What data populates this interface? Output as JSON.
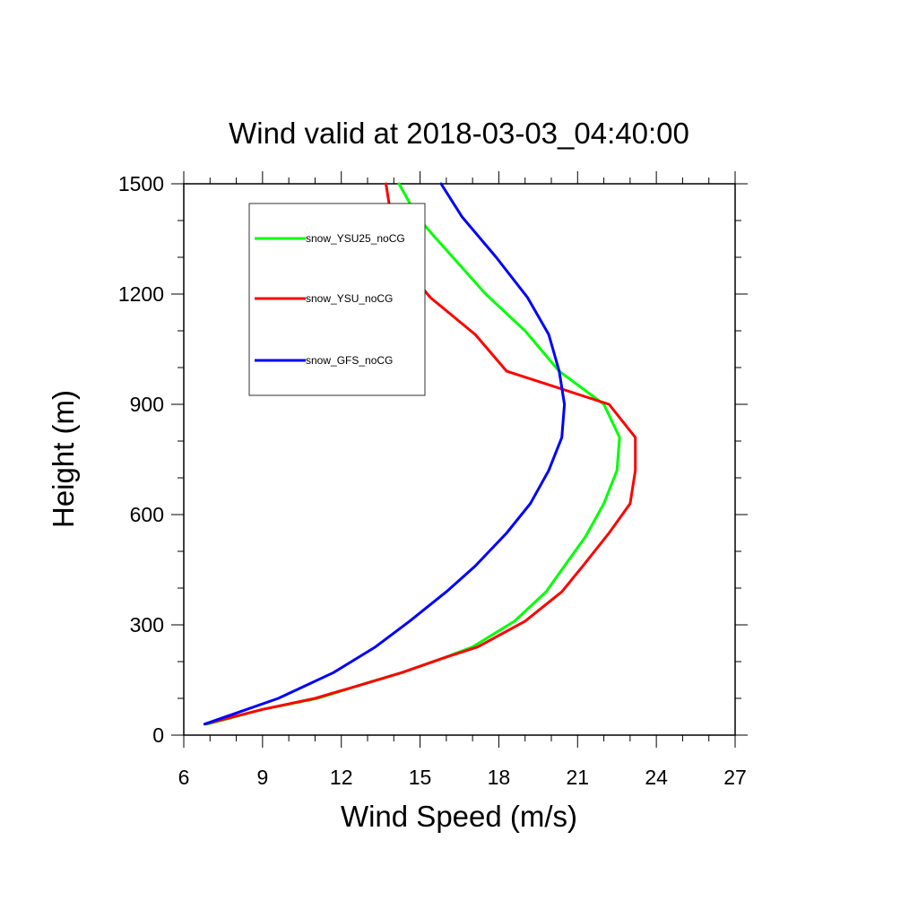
{
  "chart_data": {
    "type": "line",
    "title": "Wind valid at 2018-03-03_04:40:00",
    "xlabel": "Wind Speed (m/s)",
    "ylabel": "Height (m)",
    "xlim": [
      6,
      27
    ],
    "ylim": [
      0,
      1500
    ],
    "xticks": [
      6,
      9,
      12,
      15,
      18,
      21,
      24,
      27
    ],
    "yticks": [
      0,
      300,
      600,
      900,
      1200,
      1500
    ],
    "grid": false,
    "legend_position": "top-left",
    "series": [
      {
        "name": "snow_YSU25_noCG",
        "color": "#00ff00",
        "points": [
          [
            6.9,
            30
          ],
          [
            9.0,
            70
          ],
          [
            11.1,
            100
          ],
          [
            12.9,
            140
          ],
          [
            14.3,
            170
          ],
          [
            15.9,
            210
          ],
          [
            17.0,
            240
          ],
          [
            18.6,
            310
          ],
          [
            19.8,
            390
          ],
          [
            20.5,
            460
          ],
          [
            21.3,
            540
          ],
          [
            22.0,
            630
          ],
          [
            22.5,
            720
          ],
          [
            22.6,
            810
          ],
          [
            22.0,
            900
          ],
          [
            20.3,
            990
          ],
          [
            19.0,
            1100
          ],
          [
            17.5,
            1200
          ],
          [
            16.5,
            1280
          ],
          [
            15.5,
            1360
          ],
          [
            14.9,
            1410
          ],
          [
            14.2,
            1500
          ]
        ]
      },
      {
        "name": "snow_YSU_noCG",
        "color": "#ff0000",
        "points": [
          [
            6.8,
            30
          ],
          [
            9.0,
            70
          ],
          [
            11.0,
            100
          ],
          [
            12.9,
            140
          ],
          [
            14.3,
            170
          ],
          [
            15.9,
            210
          ],
          [
            17.2,
            240
          ],
          [
            19.0,
            310
          ],
          [
            20.4,
            390
          ],
          [
            21.2,
            460
          ],
          [
            22.2,
            550
          ],
          [
            23.0,
            630
          ],
          [
            23.2,
            720
          ],
          [
            23.2,
            810
          ],
          [
            22.2,
            900
          ],
          [
            18.3,
            990
          ],
          [
            17.1,
            1090
          ],
          [
            15.4,
            1190
          ],
          [
            14.1,
            1300
          ],
          [
            13.9,
            1410
          ],
          [
            13.7,
            1500
          ]
        ]
      },
      {
        "name": "snow_GFS_noCG",
        "color": "#0000ff",
        "points": [
          [
            6.8,
            30
          ],
          [
            9.6,
            100
          ],
          [
            11.7,
            170
          ],
          [
            13.3,
            240
          ],
          [
            14.6,
            310
          ],
          [
            16.0,
            390
          ],
          [
            17.1,
            460
          ],
          [
            18.3,
            550
          ],
          [
            19.2,
            630
          ],
          [
            19.9,
            720
          ],
          [
            20.4,
            810
          ],
          [
            20.5,
            900
          ],
          [
            20.3,
            990
          ],
          [
            19.9,
            1090
          ],
          [
            19.1,
            1190
          ],
          [
            17.9,
            1300
          ],
          [
            16.6,
            1410
          ],
          [
            15.8,
            1500
          ]
        ]
      }
    ]
  }
}
